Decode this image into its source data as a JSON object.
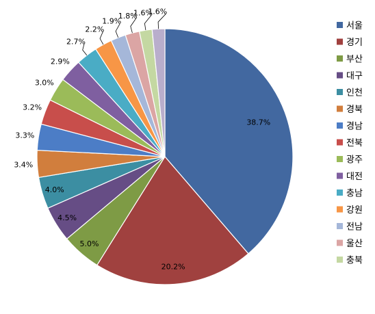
{
  "chart_data": {
    "type": "pie",
    "title": "",
    "legend_position": "right",
    "slices": [
      {
        "name": "서울",
        "value": 38.7,
        "label": "38.7%",
        "color": "#4268A0"
      },
      {
        "name": "경기",
        "value": 20.2,
        "label": "20.2%",
        "color": "#A0413F"
      },
      {
        "name": "부산",
        "value": 5.0,
        "label": "5.0%",
        "color": "#7E9B45"
      },
      {
        "name": "대구",
        "value": 4.5,
        "label": "4.5%",
        "color": "#664D85"
      },
      {
        "name": "인천",
        "value": 4.0,
        "label": "4.0%",
        "color": "#3C8EA2"
      },
      {
        "name": "경북",
        "value": 3.4,
        "label": "3.4%",
        "color": "#D17E3D"
      },
      {
        "name": "경남",
        "value": 3.3,
        "label": "3.3%",
        "color": "#4C7DC6"
      },
      {
        "name": "전북",
        "value": 3.2,
        "label": "3.2%",
        "color": "#C84E4B"
      },
      {
        "name": "광주",
        "value": 3.0,
        "label": "3.0%",
        "color": "#9BBB59"
      },
      {
        "name": "대전",
        "value": 2.9,
        "label": "2.9%",
        "color": "#7F5FA0"
      },
      {
        "name": "충남",
        "value": 2.7,
        "label": "2.7%",
        "color": "#4AACC5"
      },
      {
        "name": "강원",
        "value": 2.2,
        "label": "2.2%",
        "color": "#F79646"
      },
      {
        "name": "전남",
        "value": 1.9,
        "label": "1.9%",
        "color": "#A5B7D9"
      },
      {
        "name": "울산",
        "value": 1.8,
        "label": "1.8%",
        "color": "#DBA5A4"
      },
      {
        "name": "충북",
        "value": 1.6,
        "label": "1.6%",
        "color": "#C4D8A2"
      },
      {
        "name": "",
        "value": 1.6,
        "label": "1.6%",
        "color": "#B9AECC"
      }
    ]
  }
}
